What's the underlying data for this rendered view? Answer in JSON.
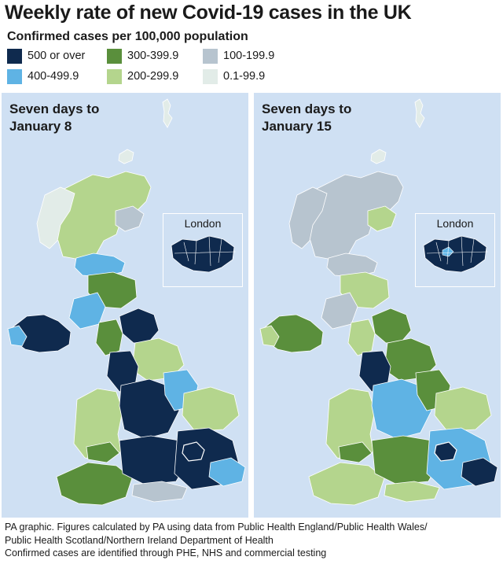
{
  "title": "Weekly rate of new Covid-19 cases in the UK",
  "subtitle": "Confirmed cases per 100,000 population",
  "legend": [
    {
      "label": "500 or over",
      "color": "#0f2a4e"
    },
    {
      "label": "400-499.9",
      "color": "#5fb3e4"
    },
    {
      "label": "300-399.9",
      "color": "#5a8f3c"
    },
    {
      "label": "200-299.9",
      "color": "#b4d58d"
    },
    {
      "label": "100-199.9",
      "color": "#b7c4cf"
    },
    {
      "label": "0.1-99.9",
      "color": "#e2ece8"
    }
  ],
  "maps": [
    {
      "label_line1": "Seven days to",
      "label_line2": "January 8",
      "inset_label": "London"
    },
    {
      "label_line1": "Seven days to",
      "label_line2": "January 15",
      "inset_label": "London"
    }
  ],
  "footer": {
    "line1": "PA graphic. Figures calculated by PA using data from Public Health England/Public Health Wales/",
    "line2": "Public Health Scotland/Northern Ireland Department of Health",
    "line3": "Confirmed cases are identified through PHE, NHS and commercial testing"
  }
}
